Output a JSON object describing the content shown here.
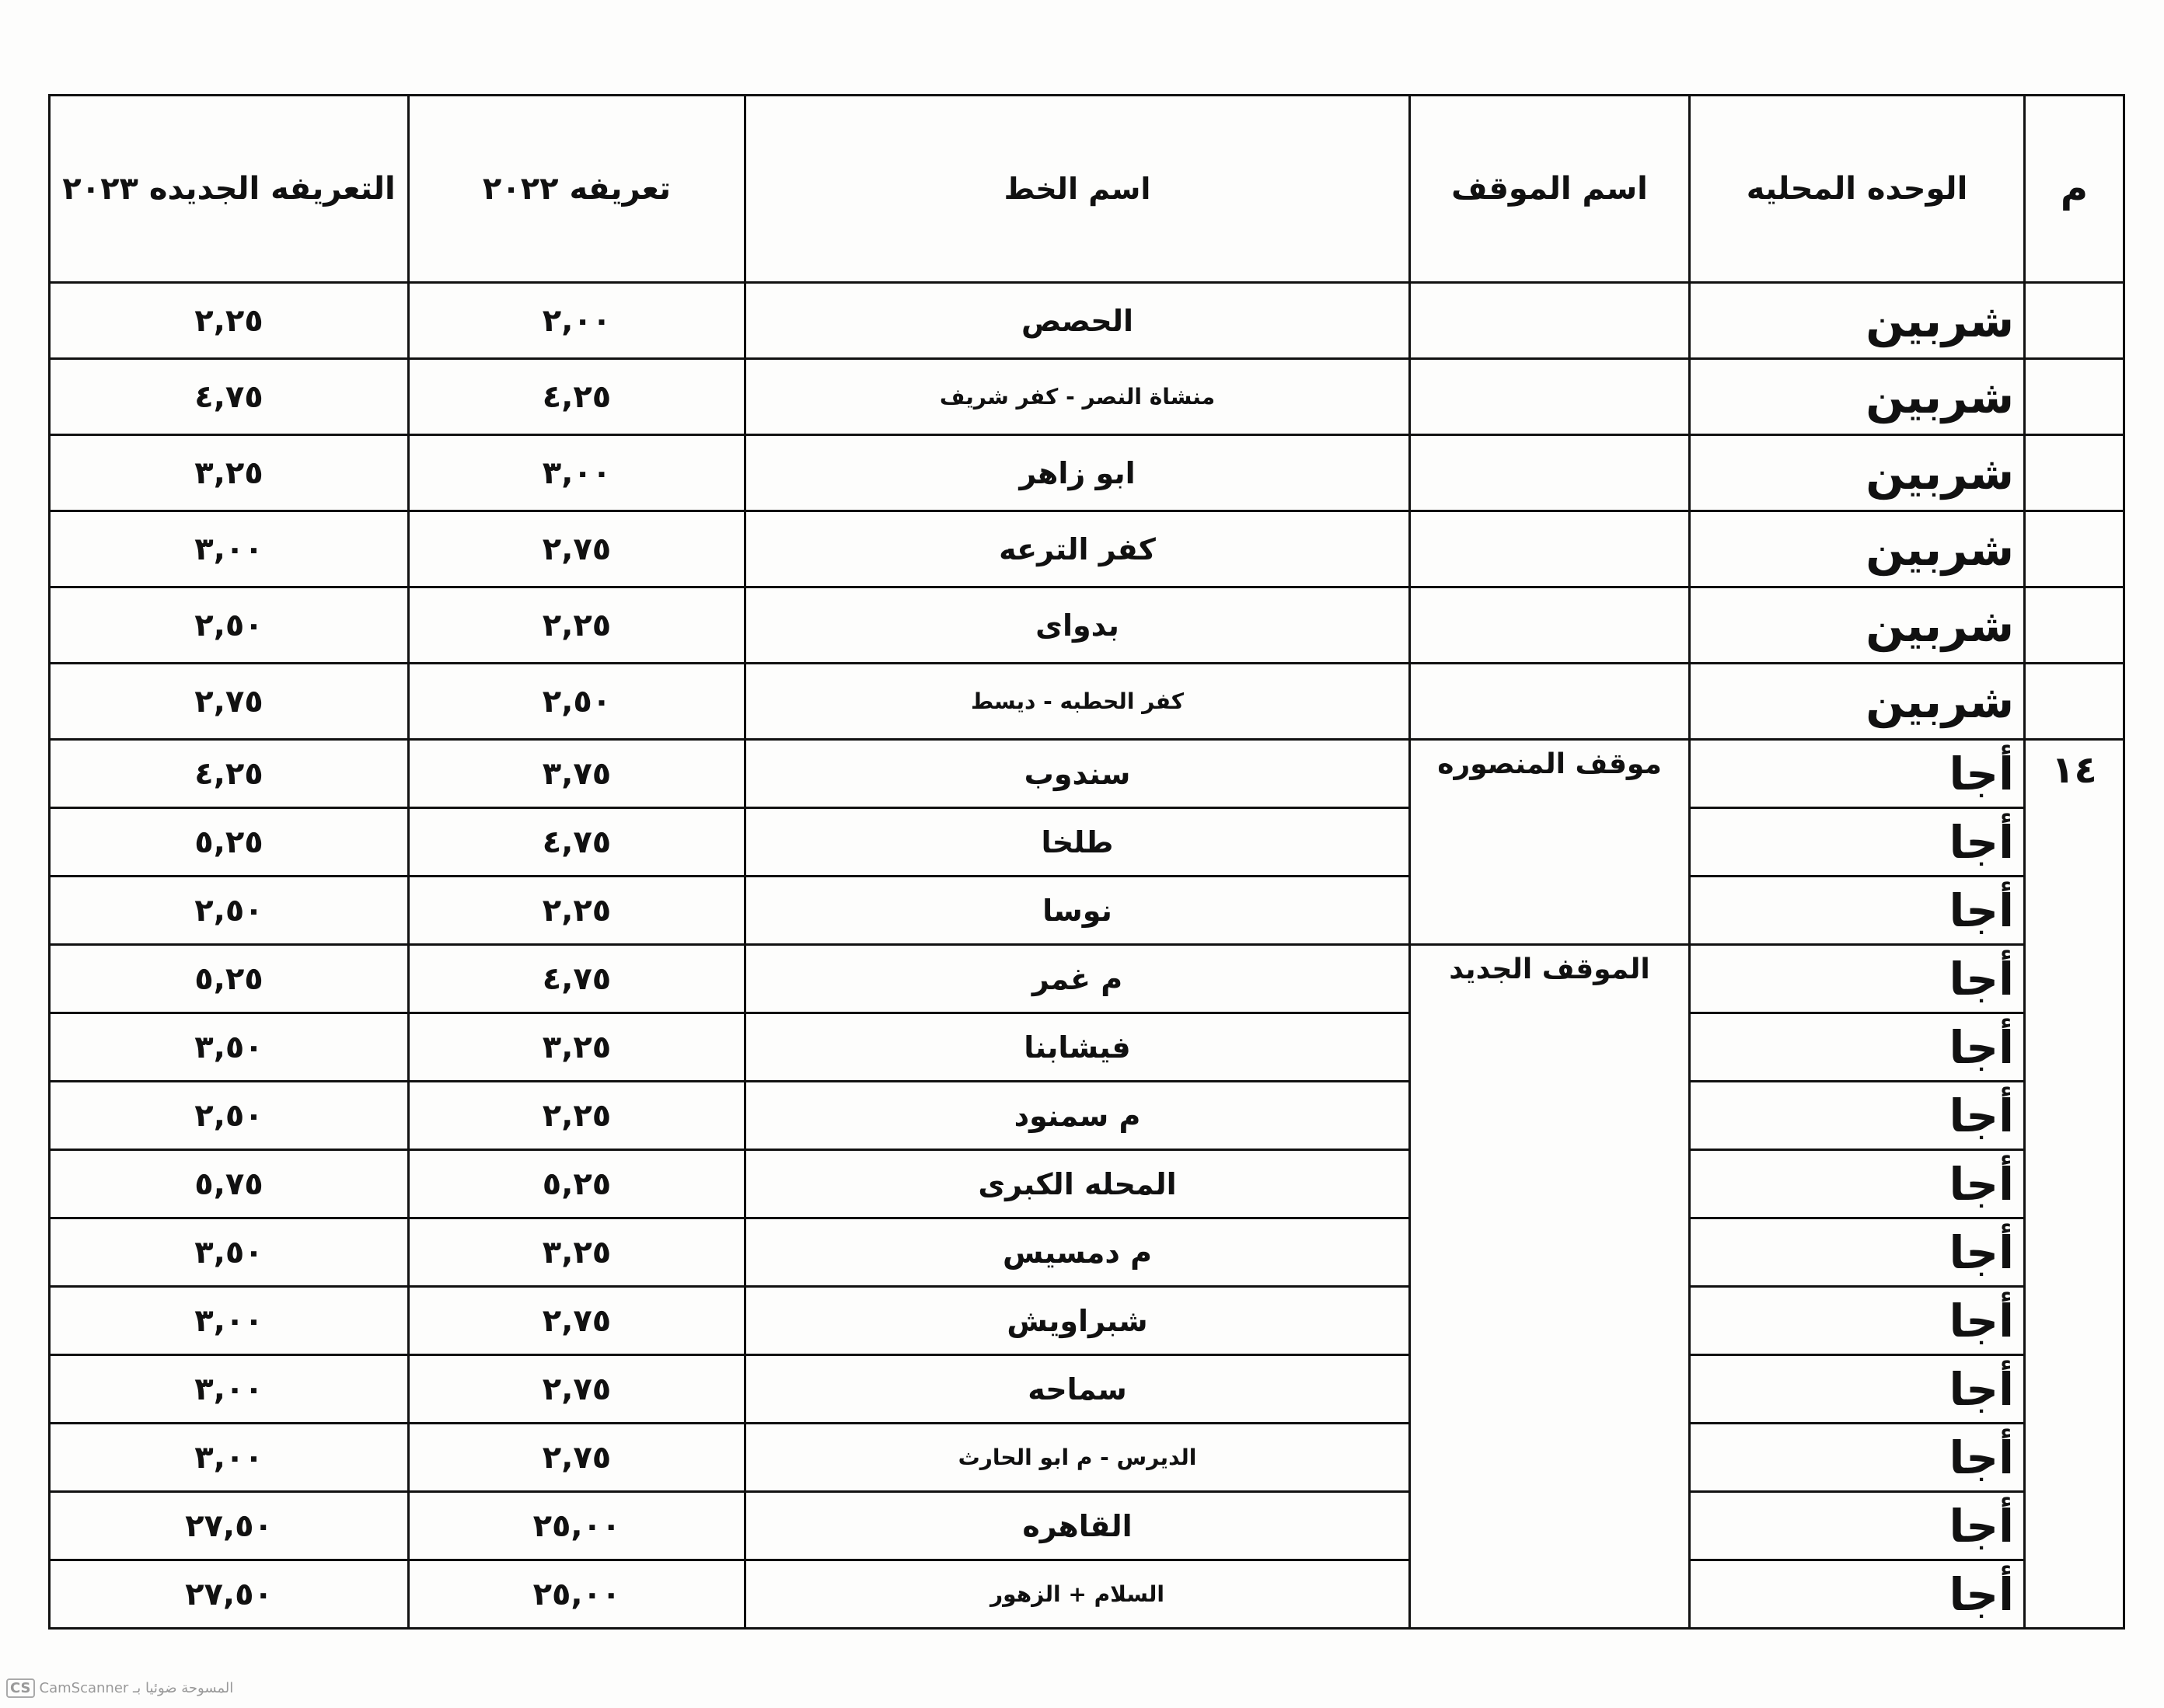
{
  "headers": {
    "no": "م",
    "unit": "الوحده المحليه",
    "stop": "اسم الموقف",
    "line": "اسم الخط",
    "fare_2022": "تعريفه ٢٠٢٢",
    "fare_2023": "التعريفه الجديده ٢٠٢٣"
  },
  "group_number": "١٤",
  "stops": [
    "موقف المنصوره",
    "الموقف الجديد"
  ],
  "rows": [
    {
      "unit": "شربين",
      "line": "الحصص",
      "fare_2022": "٢,٠٠",
      "fare_2023": "٢,٢٥"
    },
    {
      "unit": "شربين",
      "line": "منشاة النصر - كفر شريف",
      "fare_2022": "٤,٢٥",
      "fare_2023": "٤,٧٥",
      "small": true
    },
    {
      "unit": "شربين",
      "line": "ابو زاهر",
      "fare_2022": "٣,٠٠",
      "fare_2023": "٣,٢٥"
    },
    {
      "unit": "شربين",
      "line": "كفر الترعه",
      "fare_2022": "٢,٧٥",
      "fare_2023": "٣,٠٠"
    },
    {
      "unit": "شربين",
      "line": "بدواى",
      "fare_2022": "٢,٢٥",
      "fare_2023": "٢,٥٠"
    },
    {
      "unit": "شربين",
      "line": "كفر الحطبه - ديسط",
      "fare_2022": "٢,٥٠",
      "fare_2023": "٢,٧٥",
      "small": true
    },
    {
      "unit": "أجا",
      "line": "سندوب",
      "fare_2022": "٣,٧٥",
      "fare_2023": "٤,٢٥"
    },
    {
      "unit": "أجا",
      "line": "طلخا",
      "fare_2022": "٤,٧٥",
      "fare_2023": "٥,٢٥"
    },
    {
      "unit": "أجا",
      "line": "نوسا",
      "fare_2022": "٢,٢٥",
      "fare_2023": "٢,٥٠"
    },
    {
      "unit": "أجا",
      "line": "م غمر",
      "fare_2022": "٤,٧٥",
      "fare_2023": "٥,٢٥"
    },
    {
      "unit": "أجا",
      "line": "فيشابنا",
      "fare_2022": "٣,٢٥",
      "fare_2023": "٣,٥٠"
    },
    {
      "unit": "أجا",
      "line": "م سمنود",
      "fare_2022": "٢,٢٥",
      "fare_2023": "٢,٥٠"
    },
    {
      "unit": "أجا",
      "line": "المحله الكبرى",
      "fare_2022": "٥,٢٥",
      "fare_2023": "٥,٧٥"
    },
    {
      "unit": "أجا",
      "line": "م دمسيس",
      "fare_2022": "٣,٢٥",
      "fare_2023": "٣,٥٠"
    },
    {
      "unit": "أجا",
      "line": "شبراويش",
      "fare_2022": "٢,٧٥",
      "fare_2023": "٣,٠٠"
    },
    {
      "unit": "أجا",
      "line": "سماحه",
      "fare_2022": "٢,٧٥",
      "fare_2023": "٣,٠٠"
    },
    {
      "unit": "أجا",
      "line": "الديرس - م ابو الحارث",
      "fare_2022": "٢,٧٥",
      "fare_2023": "٣,٠٠",
      "small": true
    },
    {
      "unit": "أجا",
      "line": "القاهره",
      "fare_2022": "٢٥,٠٠",
      "fare_2023": "٢٧,٥٠"
    },
    {
      "unit": "أجا",
      "line": "السلام + الزهور",
      "fare_2022": "٢٥,٠٠",
      "fare_2023": "٢٧,٥٠",
      "small": true
    }
  ],
  "watermark": {
    "logo": "CS",
    "text": "CamScanner المسوحة ضوئيا بـ"
  }
}
